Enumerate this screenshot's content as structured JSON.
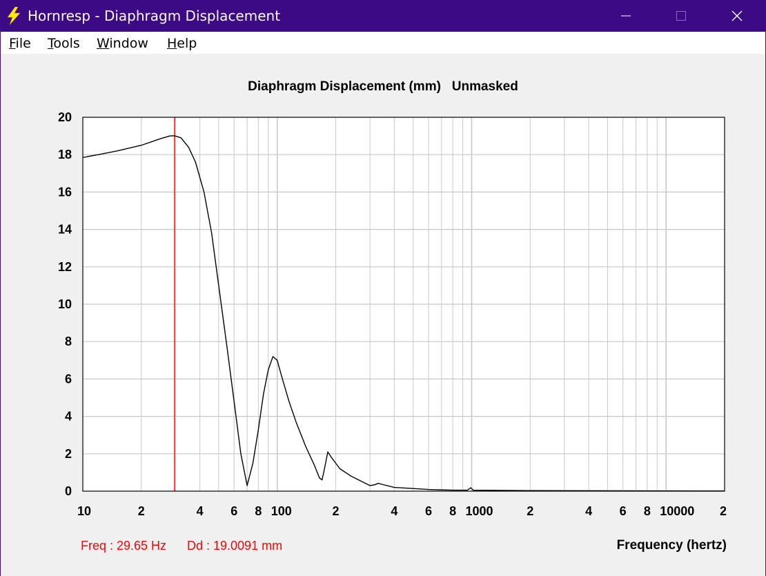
{
  "window": {
    "title": "Hornresp - Diaphragm Displacement",
    "icon": "lightning-bolt-icon",
    "controls": [
      "minimize-icon",
      "maximize-icon",
      "close-icon"
    ],
    "colors": {
      "titlebar": "#3d0a85",
      "trace": "#000000",
      "cursor": "#ff0000",
      "grid": "#c8c8c8"
    }
  },
  "menu": [
    {
      "accel": "F",
      "rest": "ile"
    },
    {
      "accel": "T",
      "rest": "ools"
    },
    {
      "accel": "W",
      "rest": "indow"
    },
    {
      "accel": "H",
      "rest": "elp"
    }
  ],
  "readout": {
    "freq": "Freq : 29.65 Hz",
    "dd": "Dd : 19.0091 mm"
  },
  "chart_data": {
    "type": "line",
    "title": "Diaphragm Displacement (mm)   Unmasked",
    "xlabel": "Frequency (hertz)",
    "ylabel": "",
    "x_scale": "log",
    "xlim": [
      10,
      20000
    ],
    "ylim": [
      0,
      20
    ],
    "grid": true,
    "y_ticks": [
      "0",
      "2",
      "4",
      "6",
      "8",
      "10",
      "12",
      "14",
      "16",
      "18",
      "20"
    ],
    "x_tick_labels": [
      {
        "x": 10,
        "label": "10"
      },
      {
        "x": 20,
        "label": "2"
      },
      {
        "x": 40,
        "label": "4"
      },
      {
        "x": 60,
        "label": "6"
      },
      {
        "x": 80,
        "label": "8"
      },
      {
        "x": 100,
        "label": "100"
      },
      {
        "x": 200,
        "label": "2"
      },
      {
        "x": 400,
        "label": "4"
      },
      {
        "x": 600,
        "label": "6"
      },
      {
        "x": 800,
        "label": "8"
      },
      {
        "x": 1000,
        "label": "1000"
      },
      {
        "x": 2000,
        "label": "2"
      },
      {
        "x": 4000,
        "label": "4"
      },
      {
        "x": 6000,
        "label": "6"
      },
      {
        "x": 8000,
        "label": "8"
      },
      {
        "x": 10000,
        "label": "10000"
      },
      {
        "x": 20000,
        "label": "2"
      }
    ],
    "cursor_x": 29.65,
    "series": [
      {
        "values": [
          [
            10,
            17.85
          ],
          [
            12,
            18.0
          ],
          [
            15,
            18.2
          ],
          [
            20,
            18.5
          ],
          [
            25,
            18.85
          ],
          [
            28,
            19.0
          ],
          [
            29.65,
            19.01
          ],
          [
            32,
            18.9
          ],
          [
            35,
            18.4
          ],
          [
            38,
            17.6
          ],
          [
            42,
            16.0
          ],
          [
            46,
            13.8
          ],
          [
            50,
            11.0
          ],
          [
            55,
            7.8
          ],
          [
            60,
            4.8
          ],
          [
            65,
            2.0
          ],
          [
            70,
            0.3
          ],
          [
            75,
            1.5
          ],
          [
            80,
            3.3
          ],
          [
            85,
            5.2
          ],
          [
            90,
            6.5
          ],
          [
            95,
            7.2
          ],
          [
            100,
            7.0
          ],
          [
            105,
            6.2
          ],
          [
            115,
            4.8
          ],
          [
            125,
            3.7
          ],
          [
            140,
            2.4
          ],
          [
            155,
            1.4
          ],
          [
            165,
            0.7
          ],
          [
            170,
            0.6
          ],
          [
            175,
            1.2
          ],
          [
            182,
            2.1
          ],
          [
            190,
            1.8
          ],
          [
            210,
            1.2
          ],
          [
            240,
            0.8
          ],
          [
            280,
            0.45
          ],
          [
            300,
            0.3
          ],
          [
            320,
            0.35
          ],
          [
            330,
            0.42
          ],
          [
            350,
            0.35
          ],
          [
            400,
            0.2
          ],
          [
            500,
            0.14
          ],
          [
            600,
            0.09
          ],
          [
            800,
            0.05
          ],
          [
            950,
            0.05
          ],
          [
            990,
            0.18
          ],
          [
            1020,
            0.05
          ],
          [
            2000,
            0.03
          ],
          [
            5000,
            0.02
          ],
          [
            20000,
            0.01
          ]
        ]
      }
    ]
  }
}
